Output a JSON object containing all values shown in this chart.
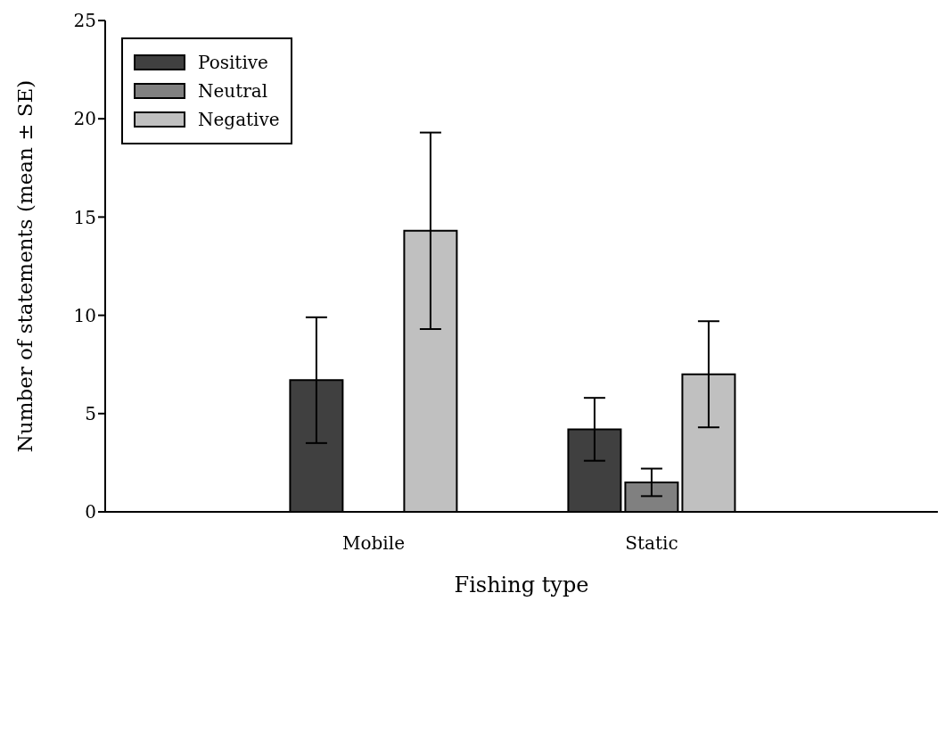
{
  "chart_data": {
    "type": "bar",
    "xlabel": "Fishing type",
    "ylabel": "Number of statements (mean ± SE)",
    "categories": [
      "Mobile",
      "Static"
    ],
    "series": [
      {
        "name": "Positive",
        "color": "#404040",
        "values": [
          6.7,
          4.2
        ],
        "errors": [
          3.2,
          1.6
        ]
      },
      {
        "name": "Neutral",
        "color": "#808080",
        "values": [
          0,
          1.5
        ],
        "errors": [
          null,
          0.7
        ]
      },
      {
        "name": "Negative",
        "color": "#c0c0c0",
        "values": [
          14.3,
          7.0
        ],
        "errors": [
          5.0,
          2.7
        ]
      }
    ],
    "ylim": [
      0,
      25
    ],
    "yticks": [
      0,
      5,
      10,
      15,
      20,
      25
    ],
    "grid": false,
    "legend": "top left"
  }
}
